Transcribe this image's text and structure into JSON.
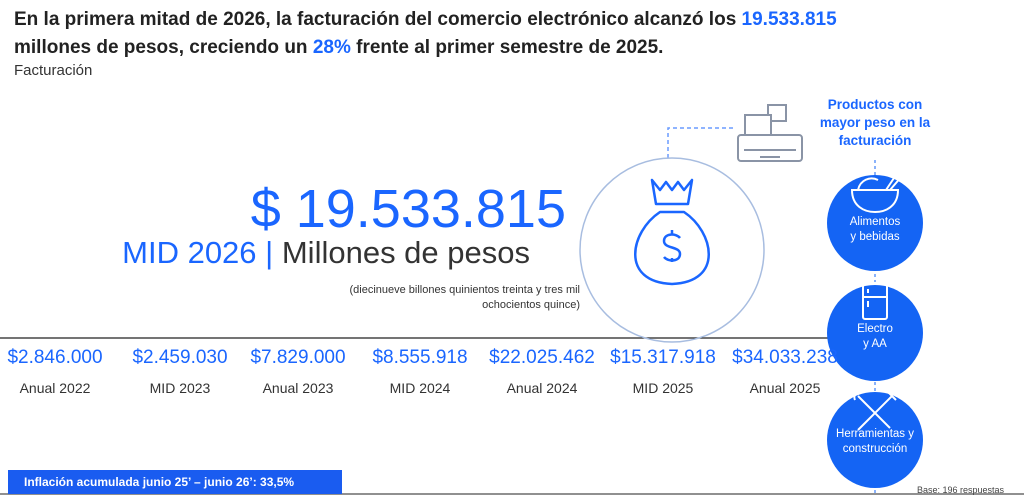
{
  "header": {
    "title": {
      "lead": "En la primera mitad de 2026, la facturación del comercio electrónico alcanzó los",
      "amount": "19.533.815",
      "middle": "millones de pesos, creciendo un",
      "growth": "28%",
      "tail": "frente al primer semestre de 2025."
    },
    "subtitle": "Facturación"
  },
  "main": {
    "amount": "$ 19.533.815",
    "period": "MID 2026",
    "separator": "|",
    "unit": "Millones de pesos",
    "words": [
      "(diecinueve billones quinientos treinta y tres mil",
      "ochocientos quince)"
    ]
  },
  "timeline": [
    {
      "value": "$2.846.000",
      "label": "Anual 2022"
    },
    {
      "value": "$2.459.030",
      "label": "MID 2023"
    },
    {
      "value": "$7.829.000",
      "label": "Anual 2023"
    },
    {
      "value": "$8.555.918",
      "label": "MID 2024"
    },
    {
      "value": "$22.025.462",
      "label": "Anual 2024"
    },
    {
      "value": "$15.317.918",
      "label": "MID 2025"
    },
    {
      "value": "$34.033.238",
      "label": "Anual 2025"
    }
  ],
  "products": {
    "title": [
      "Productos con",
      "mayor peso en la",
      "facturación"
    ],
    "items": [
      {
        "label_lines": [
          "Alimentos",
          "y bebidas"
        ]
      },
      {
        "label_lines": [
          "Electro",
          "y AA"
        ]
      },
      {
        "label_lines": [
          "Herramientas y",
          "construcción"
        ]
      }
    ]
  },
  "footer": {
    "inflation": "Inflación acumulada junio 25’ – junio 26’: 33,5%",
    "base": "Base: 196 respuestas"
  }
}
